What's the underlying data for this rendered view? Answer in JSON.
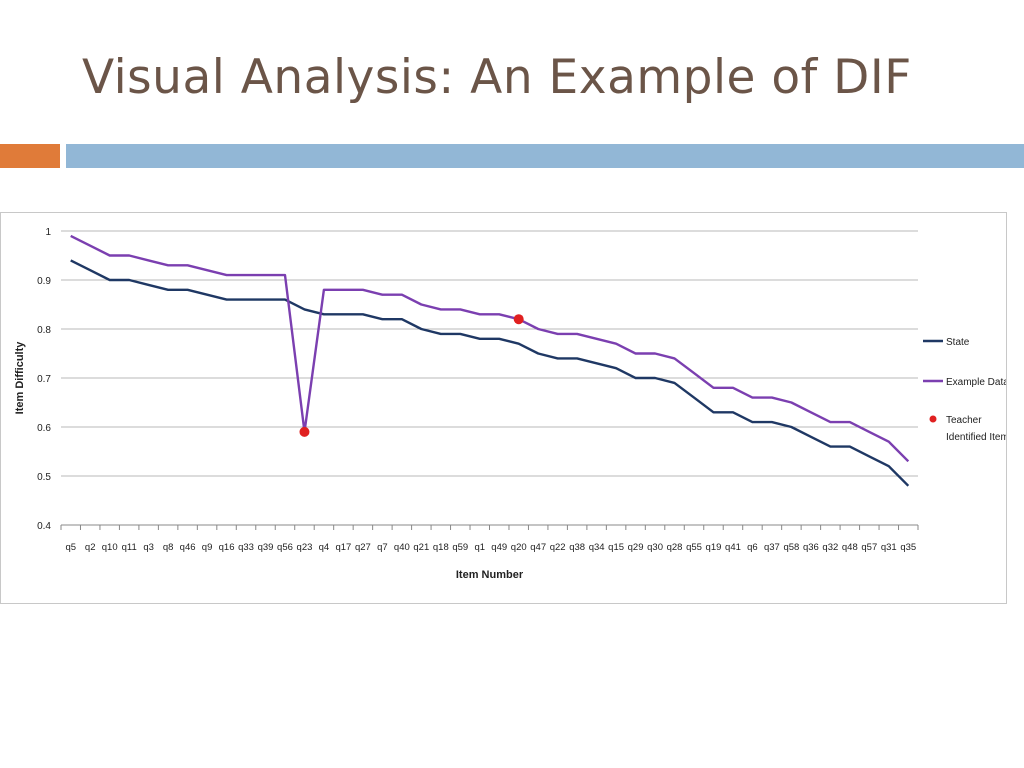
{
  "slide": {
    "title": "Visual Analysis: An Example of DIF",
    "colors": {
      "title": "#6b5548",
      "accent_orange": "#e07b39",
      "accent_blue": "#92b7d6"
    }
  },
  "chart_data": {
    "type": "line",
    "xlabel": "Item Number",
    "ylabel": "Item Difficulty",
    "ylim": [
      0.4,
      1.0
    ],
    "yticks": [
      "0.4",
      "0.5",
      "0.6",
      "0.7",
      "0.8",
      "0.9",
      "1"
    ],
    "categories": [
      "q5",
      "q2",
      "q10",
      "q11",
      "q3",
      "q8",
      "q46",
      "q9",
      "q16",
      "q33",
      "q39",
      "q56",
      "q23",
      "q4",
      "q17",
      "q27",
      "q7",
      "q40",
      "q21",
      "q18",
      "q59",
      "q1",
      "q49",
      "q20",
      "q47",
      "q22",
      "q38",
      "q34",
      "q15",
      "q29",
      "q30",
      "q28",
      "q55",
      "q19",
      "q41",
      "q6",
      "q37",
      "q58",
      "q36",
      "q32",
      "q48",
      "q57",
      "q31",
      "q35"
    ],
    "series": [
      {
        "name": "State",
        "color": "#1f3864",
        "values": [
          0.94,
          0.92,
          0.9,
          0.9,
          0.89,
          0.88,
          0.88,
          0.87,
          0.86,
          0.86,
          0.86,
          0.86,
          0.84,
          0.83,
          0.83,
          0.83,
          0.82,
          0.82,
          0.8,
          0.79,
          0.79,
          0.78,
          0.78,
          0.77,
          0.75,
          0.74,
          0.74,
          0.73,
          0.72,
          0.7,
          0.7,
          0.69,
          0.66,
          0.63,
          0.63,
          0.61,
          0.61,
          0.6,
          0.58,
          0.56,
          0.56,
          0.54,
          0.52,
          0.48
        ]
      },
      {
        "name": "Example Data",
        "color": "#7b3fb0",
        "values": [
          0.99,
          0.97,
          0.95,
          0.95,
          0.94,
          0.93,
          0.93,
          0.92,
          0.91,
          0.91,
          0.91,
          0.91,
          0.59,
          0.88,
          0.88,
          0.88,
          0.87,
          0.87,
          0.85,
          0.84,
          0.84,
          0.83,
          0.83,
          0.82,
          0.8,
          0.79,
          0.79,
          0.78,
          0.77,
          0.75,
          0.75,
          0.74,
          0.71,
          0.68,
          0.68,
          0.66,
          0.66,
          0.65,
          0.63,
          0.61,
          0.61,
          0.59,
          0.57,
          0.53
        ]
      },
      {
        "name": "Teacher Identified Items",
        "color": "#e02020",
        "markers_only": true,
        "points": [
          {
            "category": "q23",
            "value": 0.59
          },
          {
            "category": "q20",
            "value": 0.82
          }
        ]
      }
    ],
    "legend": {
      "placement": "right",
      "entries": [
        {
          "label": "State",
          "kind": "line",
          "color": "#1f3864"
        },
        {
          "label": "Example Data",
          "kind": "line",
          "color": "#7b3fb0"
        },
        {
          "label": "Teacher Identified Items",
          "kind": "marker",
          "color": "#e02020",
          "lines": [
            "Teacher",
            "Identified Items"
          ]
        }
      ]
    },
    "grid": true,
    "gridline_color": "#b8b8b8"
  }
}
